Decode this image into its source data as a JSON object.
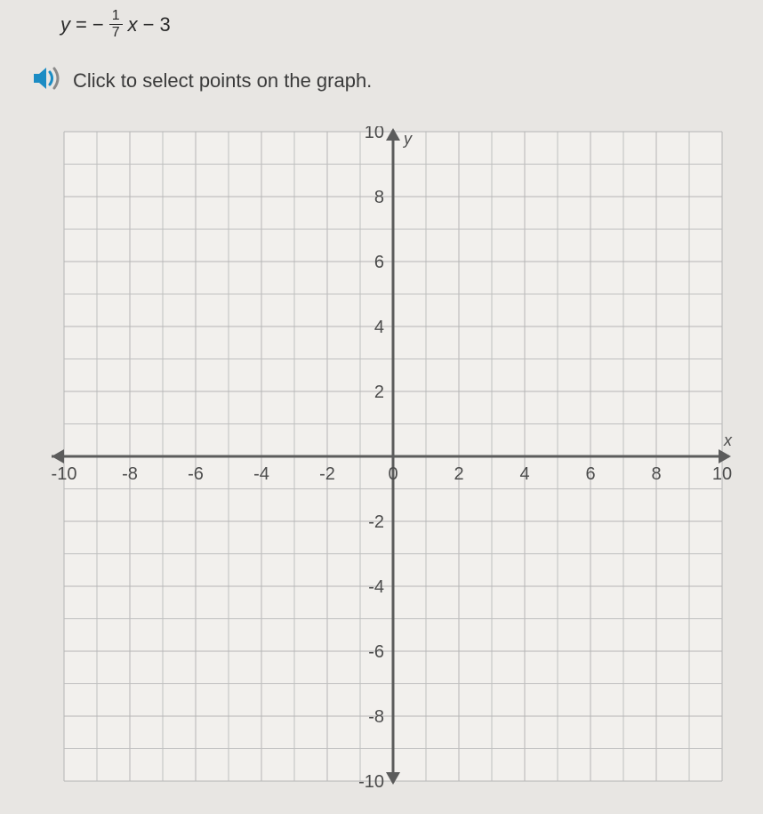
{
  "equation": {
    "lhs_var": "y",
    "equals": "=",
    "neg": "−",
    "frac_num": "1",
    "frac_den": "7",
    "x_var": "x",
    "minus": "−",
    "constant": "3"
  },
  "instruction": "Click to select points on the graph.",
  "graph": {
    "type": "cartesian-grid",
    "x_axis_label": "x",
    "y_axis_label": "y",
    "xlim": [
      -10,
      10
    ],
    "ylim": [
      -10,
      10
    ],
    "tick_step": 1,
    "labeled_x_ticks": [
      "-10",
      "-8",
      "-6",
      "-4",
      "-2",
      "0",
      "2",
      "4",
      "6",
      "8",
      "10"
    ],
    "labeled_y_ticks": [
      "10",
      "8",
      "6",
      "4",
      "2",
      "-2",
      "-4",
      "-6",
      "-8",
      "-10"
    ],
    "colors": {
      "background": "#f2f0ed",
      "grid_minor": "#bfbfbf",
      "grid_major": "#b5b5b5",
      "axis": "#5c5c5c",
      "page_bg": "#e8e6e3",
      "speaker_blue": "#1b8cc4",
      "speaker_gray": "#8a8a8a"
    }
  }
}
